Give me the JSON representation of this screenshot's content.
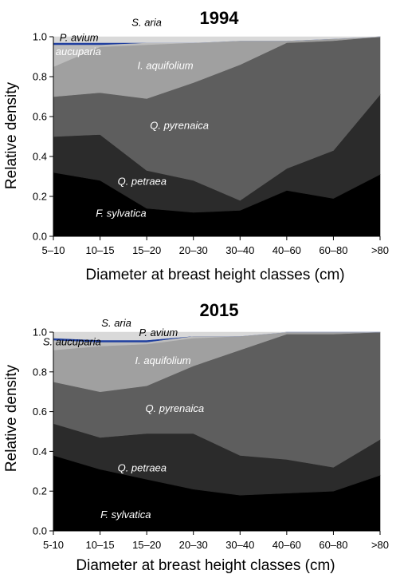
{
  "chart_data": [
    {
      "type": "area",
      "stacked": true,
      "title": "1994",
      "xlabel": "Diameter at breast height classes (cm)",
      "ylabel": "Relative density",
      "ylim": [
        0,
        1
      ],
      "yticks": [
        "0.0",
        "0.2",
        "0.4",
        "0.6",
        "0.8",
        "1.0"
      ],
      "categories": [
        "5–10",
        "10–15",
        "15–20",
        "20–30",
        "30–40",
        "40–60",
        "60–80",
        ">80"
      ],
      "series": [
        {
          "name": "F. sylvatica",
          "color": "#000000",
          "values": [
            0.32,
            0.28,
            0.14,
            0.12,
            0.13,
            0.23,
            0.19,
            0.31
          ]
        },
        {
          "name": "Q. petraea",
          "color": "#2b2b2b",
          "values": [
            0.18,
            0.23,
            0.19,
            0.16,
            0.05,
            0.11,
            0.24,
            0.4
          ]
        },
        {
          "name": "Q. pyrenaica",
          "color": "#5e5e5e",
          "values": [
            0.2,
            0.21,
            0.36,
            0.49,
            0.68,
            0.63,
            0.55,
            0.29
          ]
        },
        {
          "name": "I. aquifolium",
          "color": "#a0a0a0",
          "values": [
            0.15,
            0.23,
            0.27,
            0.2,
            0.12,
            0.01,
            0.01,
            0.0
          ]
        },
        {
          "name": "S. aucuparia",
          "color": "#bdbdbd",
          "values": [
            0.11,
            0.01,
            0.01,
            0.0,
            0.0,
            0.0,
            0.0,
            0.0
          ]
        },
        {
          "name": "P. avium",
          "color": "#1f3f9f",
          "values": [
            0.01,
            0.01,
            0.0,
            0.0,
            0.0,
            0.0,
            0.0,
            0.0
          ]
        },
        {
          "name": "S. aria",
          "color": "#d9d9d9",
          "values": [
            0.03,
            0.03,
            0.03,
            0.03,
            0.02,
            0.02,
            0.01,
            0.0
          ]
        }
      ],
      "labels": [
        {
          "text": "S. aria",
          "color": "#000000",
          "x": 2.0,
          "y": 1.07
        },
        {
          "text": "P. avium",
          "color": "#000000",
          "x": 0.55,
          "y": 0.995
        },
        {
          "text": "S. aucuparia",
          "color": "#ffffff",
          "x": 0.4,
          "y": 0.925
        },
        {
          "text": "I. aquifolium",
          "color": "#ffffff",
          "x": 2.4,
          "y": 0.855
        },
        {
          "text": "Q. pyrenaica",
          "color": "#ffffff",
          "x": 2.7,
          "y": 0.555
        },
        {
          "text": "Q. petraea",
          "color": "#ffffff",
          "x": 1.9,
          "y": 0.275
        },
        {
          "text": "F. sylvatica",
          "color": "#ffffff",
          "x": 1.45,
          "y": 0.115
        }
      ]
    },
    {
      "type": "area",
      "stacked": true,
      "title": "2015",
      "xlabel": "Diameter at breast height classes (cm)",
      "ylabel": "Relative density",
      "ylim": [
        0,
        1
      ],
      "yticks": [
        "0.0",
        "0.2",
        "0.4",
        "0.6",
        "0.8",
        "1.0"
      ],
      "categories": [
        "5-10",
        "10–15",
        "15–20",
        "20–30",
        "30–40",
        "40–60",
        "60–80",
        ">80"
      ],
      "series": [
        {
          "name": "F. sylvatica",
          "color": "#000000",
          "values": [
            0.38,
            0.31,
            0.26,
            0.21,
            0.18,
            0.19,
            0.2,
            0.28
          ]
        },
        {
          "name": "Q. petraea",
          "color": "#2b2b2b",
          "values": [
            0.16,
            0.16,
            0.23,
            0.28,
            0.2,
            0.17,
            0.12,
            0.18
          ]
        },
        {
          "name": "Q. pyrenaica",
          "color": "#5e5e5e",
          "values": [
            0.21,
            0.23,
            0.24,
            0.34,
            0.53,
            0.63,
            0.67,
            0.54
          ]
        },
        {
          "name": "I. aquifolium",
          "color": "#a0a0a0",
          "values": [
            0.16,
            0.23,
            0.21,
            0.14,
            0.07,
            0.01,
            0.01,
            0.0
          ]
        },
        {
          "name": "S. aucuparia",
          "color": "#bdbdbd",
          "values": [
            0.05,
            0.02,
            0.01,
            0.01,
            0.0,
            0.0,
            0.0,
            0.0
          ]
        },
        {
          "name": "P. avium",
          "color": "#1f3f9f",
          "values": [
            0.01,
            0.01,
            0.01,
            0.0,
            0.0,
            0.0,
            0.0,
            0.0
          ]
        },
        {
          "name": "S. aria",
          "color": "#d9d9d9",
          "values": [
            0.03,
            0.04,
            0.04,
            0.02,
            0.02,
            0.0,
            0.0,
            0.0
          ]
        }
      ],
      "labels": [
        {
          "text": "S. aria",
          "color": "#000000",
          "x": 1.35,
          "y": 1.045
        },
        {
          "text": "P. avium",
          "color": "#000000",
          "x": 2.25,
          "y": 0.995
        },
        {
          "text": "S. aucuparia",
          "color": "#000000",
          "x": 0.4,
          "y": 0.95
        },
        {
          "text": "I. aquifolium",
          "color": "#ffffff",
          "x": 2.35,
          "y": 0.855
        },
        {
          "text": "Q. pyrenaica",
          "color": "#ffffff",
          "x": 2.6,
          "y": 0.615
        },
        {
          "text": "Q. petraea",
          "color": "#ffffff",
          "x": 1.9,
          "y": 0.315
        },
        {
          "text": "F. sylvatica",
          "color": "#ffffff",
          "x": 1.55,
          "y": 0.08
        }
      ]
    }
  ]
}
